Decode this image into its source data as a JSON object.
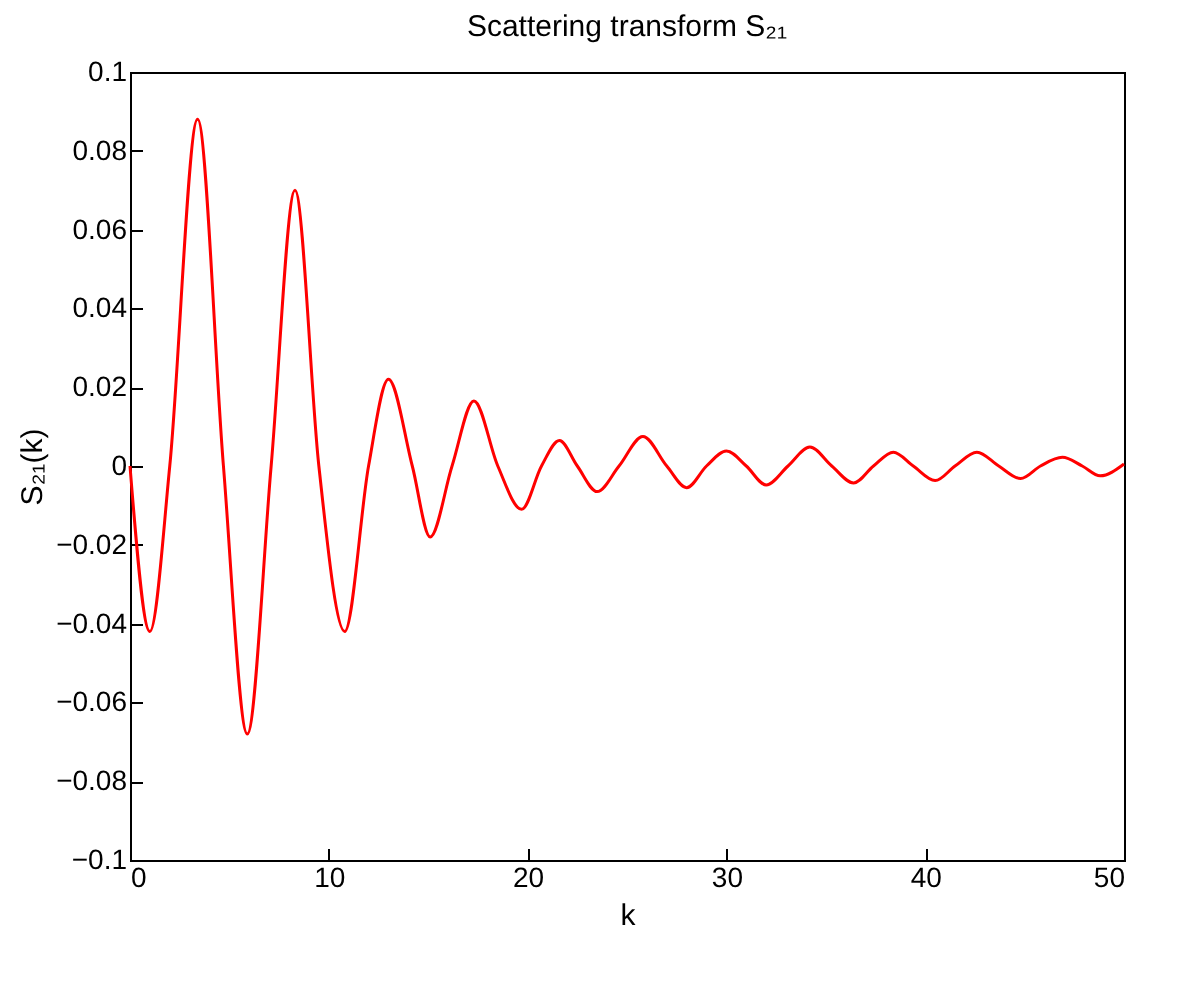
{
  "chart_data": {
    "type": "line",
    "title": "Scattering transform S₂₁",
    "xlabel": "k",
    "ylabel": "S₂₁(k)",
    "x": [
      0,
      1.0,
      2.0,
      3.4,
      4.7,
      5.9,
      7.1,
      8.3,
      9.5,
      10.8,
      12,
      13.0,
      14.2,
      15.1,
      16.2,
      17.3,
      18.5,
      19.7,
      20.7,
      21.6,
      22.5,
      23.5,
      24.6,
      25.8,
      27,
      28.0,
      29,
      30.0,
      31,
      32.0,
      33.1,
      34.2,
      35.3,
      36.4,
      37.4,
      38.4,
      39.4,
      40.5,
      41.5,
      42.6,
      43.7,
      44.8,
      45.8,
      46.9,
      47.9,
      48.8,
      50
    ],
    "series": [
      {
        "color": "#ff0000",
        "values": [
          0,
          -0.042,
          0,
          0.088,
          0,
          -0.068,
          0,
          0.07,
          0,
          -0.042,
          0,
          0.022,
          0,
          -0.018,
          0,
          0.0165,
          0,
          -0.011,
          0,
          0.0065,
          0,
          -0.0065,
          0,
          0.0075,
          0,
          -0.0055,
          0,
          0.0038,
          0,
          -0.0048,
          0,
          0.0048,
          0,
          -0.0043,
          0,
          0.0035,
          0,
          -0.0037,
          0,
          0.0035,
          0,
          -0.0032,
          0,
          0.0022,
          0,
          -0.0025,
          0.0005
        ]
      }
    ],
    "xlim": [
      0,
      50
    ],
    "xticks": [
      0,
      10,
      20,
      30,
      40,
      50
    ],
    "ylim": [
      -0.1,
      0.1
    ],
    "yticks": [
      {
        "value": -0.1,
        "label": "−0.1"
      },
      {
        "value": -0.08,
        "label": "−0.08"
      },
      {
        "value": -0.06,
        "label": "−0.06"
      },
      {
        "value": -0.04,
        "label": "−0.04"
      },
      {
        "value": -0.02,
        "label": "−0.02"
      },
      0,
      0.02,
      0.04,
      0.06,
      0.08,
      0.1
    ],
    "grid": false,
    "legend": false,
    "marker": "none",
    "line_style": "solid"
  }
}
